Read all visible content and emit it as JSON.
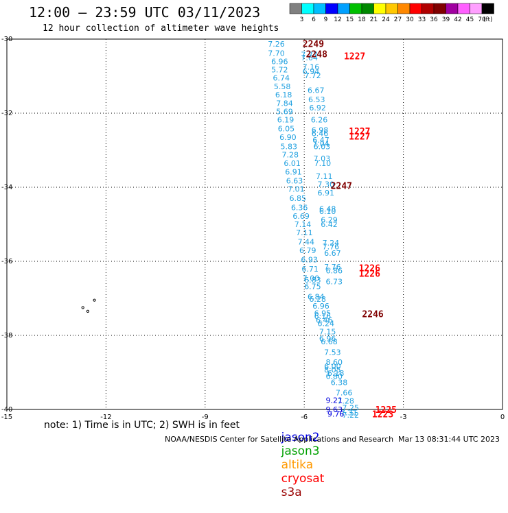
{
  "title": "12:00 — 23:59 UTC 03/11/2023",
  "subtitle": "12 hour collection of altimeter wave heights",
  "note": "note: 1) Time is in UTC; 2) SWH is in feet",
  "footer_credit": "NOAA/NESDIS Center for Satellite Applications and Research",
  "footer_time": "Mar 13 08:31:44 UTC 2023",
  "colorbar": {
    "unit": "(ft)",
    "labels": [
      "3",
      "6",
      "9",
      "12",
      "15",
      "18",
      "21",
      "24",
      "27",
      "30",
      "33",
      "36",
      "39",
      "42",
      "45",
      "70"
    ],
    "colors": [
      "#808080",
      "#00ffff",
      "#00bfff",
      "#0000ff",
      "#00a0ff",
      "#00c000",
      "#008800",
      "#ffff00",
      "#ffc800",
      "#ff8800",
      "#ff0000",
      "#b00000",
      "#800000",
      "#a000a0",
      "#ff60ff",
      "#ffa0ff",
      "#000000"
    ]
  },
  "legend": [
    {
      "name": "jason2",
      "color": "#0000dd"
    },
    {
      "name": "jason3",
      "color": "#00a000"
    },
    {
      "name": "altika",
      "color": "#ff9900"
    },
    {
      "name": "cryosat",
      "color": "#ff0000"
    },
    {
      "name": "s3a",
      "color": "#990000"
    }
  ],
  "chart_data": {
    "type": "scatter",
    "xlim": [
      -15,
      0
    ],
    "ylim": [
      -40,
      -30
    ],
    "x_ticks": [
      -15,
      -12,
      -9,
      -6,
      -3,
      0
    ],
    "y_ticks": [
      -30,
      -32,
      -34,
      -36,
      -38,
      -40
    ],
    "grid": true,
    "swh_points": [
      {
        "lon": -7.1,
        "lat": -30.13,
        "v": "7.26"
      },
      {
        "lon": -7.1,
        "lat": -30.38,
        "v": "7.70"
      },
      {
        "lon": -6.1,
        "lat": -30.42,
        "v": "7.77"
      },
      {
        "lon": -6.1,
        "lat": -30.5,
        "v": "7.64"
      },
      {
        "lon": -7.0,
        "lat": -30.6,
        "v": "6.96"
      },
      {
        "lon": -6.05,
        "lat": -30.75,
        "v": "7.16"
      },
      {
        "lon": -6.05,
        "lat": -30.87,
        "v": "6.94"
      },
      {
        "lon": -7.0,
        "lat": -30.82,
        "v": "5.72"
      },
      {
        "lon": -6.0,
        "lat": -30.98,
        "v": "7.72"
      },
      {
        "lon": -6.95,
        "lat": -31.05,
        "v": "6.74"
      },
      {
        "lon": -6.92,
        "lat": -31.28,
        "v": "5.58"
      },
      {
        "lon": -5.9,
        "lat": -31.38,
        "v": "6.67"
      },
      {
        "lon": -6.88,
        "lat": -31.5,
        "v": "6.18"
      },
      {
        "lon": -5.88,
        "lat": -31.63,
        "v": "6.53"
      },
      {
        "lon": -6.85,
        "lat": -31.73,
        "v": "7.84"
      },
      {
        "lon": -5.85,
        "lat": -31.85,
        "v": "6.92"
      },
      {
        "lon": -6.85,
        "lat": -31.95,
        "v": "5.69"
      },
      {
        "lon": -6.82,
        "lat": -32.18,
        "v": "6.19"
      },
      {
        "lon": -5.8,
        "lat": -32.18,
        "v": "6.26"
      },
      {
        "lon": -6.8,
        "lat": -32.42,
        "v": "6.05"
      },
      {
        "lon": -5.78,
        "lat": -32.45,
        "v": "6.98"
      },
      {
        "lon": -5.78,
        "lat": -32.55,
        "v": "6.46"
      },
      {
        "lon": -6.75,
        "lat": -32.65,
        "v": "6.90"
      },
      {
        "lon": -5.75,
        "lat": -32.72,
        "v": "6.47"
      },
      {
        "lon": -5.75,
        "lat": -32.82,
        "v": "7.04"
      },
      {
        "lon": -6.72,
        "lat": -32.9,
        "v": "5.83"
      },
      {
        "lon": -5.72,
        "lat": -32.9,
        "v": "6.03"
      },
      {
        "lon": -6.68,
        "lat": -33.12,
        "v": "7.28"
      },
      {
        "lon": -5.72,
        "lat": -33.22,
        "v": "7.03"
      },
      {
        "lon": -6.62,
        "lat": -33.35,
        "v": "6.01"
      },
      {
        "lon": -5.7,
        "lat": -33.35,
        "v": "7.10"
      },
      {
        "lon": -6.58,
        "lat": -33.58,
        "v": "6.91"
      },
      {
        "lon": -5.65,
        "lat": -33.7,
        "v": "7.11"
      },
      {
        "lon": -6.55,
        "lat": -33.82,
        "v": "6.63"
      },
      {
        "lon": -5.6,
        "lat": -33.92,
        "v": "7.30"
      },
      {
        "lon": -6.5,
        "lat": -34.05,
        "v": "7.01"
      },
      {
        "lon": -5.6,
        "lat": -34.15,
        "v": "6.91"
      },
      {
        "lon": -6.45,
        "lat": -34.3,
        "v": "6.85"
      },
      {
        "lon": -6.4,
        "lat": -34.55,
        "v": "6.36"
      },
      {
        "lon": -5.55,
        "lat": -34.58,
        "v": "6.48"
      },
      {
        "lon": -5.55,
        "lat": -34.65,
        "v": "6.10"
      },
      {
        "lon": -6.35,
        "lat": -34.78,
        "v": "6.69"
      },
      {
        "lon": -5.5,
        "lat": -34.88,
        "v": "6.29"
      },
      {
        "lon": -6.3,
        "lat": -35.0,
        "v": "7.14"
      },
      {
        "lon": -5.5,
        "lat": -35.0,
        "v": "6.42"
      },
      {
        "lon": -6.25,
        "lat": -35.22,
        "v": "7.11"
      },
      {
        "lon": -6.2,
        "lat": -35.47,
        "v": "7.44"
      },
      {
        "lon": -5.45,
        "lat": -35.5,
        "v": "7.24"
      },
      {
        "lon": -5.45,
        "lat": -35.6,
        "v": "7.76"
      },
      {
        "lon": -6.15,
        "lat": -35.7,
        "v": "6.79"
      },
      {
        "lon": -5.4,
        "lat": -35.78,
        "v": "6.67"
      },
      {
        "lon": -6.1,
        "lat": -35.95,
        "v": "6.93"
      },
      {
        "lon": -6.08,
        "lat": -36.2,
        "v": "6.71"
      },
      {
        "lon": -5.4,
        "lat": -36.15,
        "v": "7.76"
      },
      {
        "lon": -5.35,
        "lat": -36.25,
        "v": "6.86"
      },
      {
        "lon": -6.05,
        "lat": -36.45,
        "v": "7.00"
      },
      {
        "lon": -5.35,
        "lat": -36.55,
        "v": "6.73"
      },
      {
        "lon": -6.0,
        "lat": -36.5,
        "v": "6.83"
      },
      {
        "lon": -6.0,
        "lat": -36.68,
        "v": "6.75"
      },
      {
        "lon": -5.9,
        "lat": -36.95,
        "v": "6.84"
      },
      {
        "lon": -5.85,
        "lat": -37.02,
        "v": "6.28"
      },
      {
        "lon": -5.75,
        "lat": -37.2,
        "v": "6.96"
      },
      {
        "lon": -5.7,
        "lat": -37.4,
        "v": "6.95"
      },
      {
        "lon": -5.7,
        "lat": -37.48,
        "v": "6.16"
      },
      {
        "lon": -5.65,
        "lat": -37.58,
        "v": "6.46"
      },
      {
        "lon": -5.6,
        "lat": -37.68,
        "v": "6.24"
      },
      {
        "lon": -5.55,
        "lat": -37.9,
        "v": "7.15"
      },
      {
        "lon": -5.55,
        "lat": -38.08,
        "v": "6.96"
      },
      {
        "lon": -5.5,
        "lat": -38.17,
        "v": "6.68"
      },
      {
        "lon": -5.4,
        "lat": -38.45,
        "v": "7.53"
      },
      {
        "lon": -5.35,
        "lat": -38.72,
        "v": "8.60"
      },
      {
        "lon": -5.4,
        "lat": -38.83,
        "v": "6.00"
      },
      {
        "lon": -5.4,
        "lat": -38.93,
        "v": "8.05"
      },
      {
        "lon": -5.3,
        "lat": -39.02,
        "v": "6.18"
      },
      {
        "lon": -5.35,
        "lat": -39.1,
        "v": "6.80"
      },
      {
        "lon": -5.2,
        "lat": -39.27,
        "v": "6.38"
      },
      {
        "lon": -5.05,
        "lat": -39.55,
        "v": "7.66"
      },
      {
        "lon": -5.0,
        "lat": -39.77,
        "v": "7.28"
      },
      {
        "lon": -4.85,
        "lat": -39.95,
        "v": "7.25"
      },
      {
        "lon": -4.9,
        "lat": -40.08,
        "v": "7.31"
      },
      {
        "lon": -4.85,
        "lat": -40.15,
        "v": "7.22"
      }
    ],
    "jason2_points": [
      {
        "lon": -5.35,
        "lat": -39.75,
        "v": "9.21"
      },
      {
        "lon": -5.35,
        "lat": -40.0,
        "v": "9.63"
      },
      {
        "lon": -5.3,
        "lat": -40.12,
        "v": "9.76"
      }
    ],
    "time_labels": [
      {
        "lon": -6.05,
        "lat": -30.12,
        "t": "2249",
        "color": "#800000"
      },
      {
        "lon": -5.95,
        "lat": -30.4,
        "t": "2248",
        "color": "#800000"
      },
      {
        "lon": -4.8,
        "lat": -30.45,
        "t": "1227",
        "color": "#ff0000"
      },
      {
        "lon": -4.65,
        "lat": -32.48,
        "t": "1227",
        "color": "#ff0000"
      },
      {
        "lon": -4.65,
        "lat": -32.62,
        "t": "1227",
        "color": "#ff0000"
      },
      {
        "lon": -5.2,
        "lat": -33.95,
        "t": "2247",
        "color": "#800000"
      },
      {
        "lon": -4.35,
        "lat": -36.18,
        "t": "1226",
        "color": "#ff0000"
      },
      {
        "lon": -4.35,
        "lat": -36.32,
        "t": "1226",
        "color": "#ff0000"
      },
      {
        "lon": -4.25,
        "lat": -37.42,
        "t": "2246",
        "color": "#800000"
      },
      {
        "lon": -3.85,
        "lat": -40.0,
        "t": "1225",
        "color": "#ff0000"
      },
      {
        "lon": -3.95,
        "lat": -40.12,
        "t": "1223",
        "color": "#ff0000"
      }
    ],
    "land_points": [
      {
        "lon": -12.35,
        "lat": -37.05
      },
      {
        "lon": -12.7,
        "lat": -37.25
      },
      {
        "lon": -12.55,
        "lat": -37.35
      }
    ]
  }
}
